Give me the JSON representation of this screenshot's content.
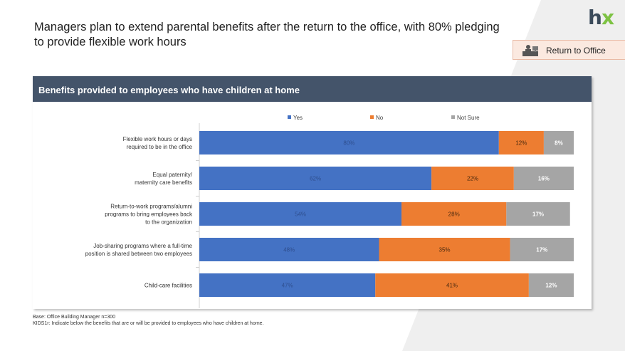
{
  "header": {
    "title": "Managers plan to extend parental benefits after the return to the office, with 80% pledging to provide flexible work hours",
    "logo": {
      "h": "h",
      "x": "x"
    },
    "tag_label": "Return to Office",
    "tag_icon": "office-worker-icon"
  },
  "panel": {
    "title": "Benefits provided to employees who have children at home"
  },
  "footnotes": {
    "base": "Base: Office Building Manager n=300",
    "question": "KIDS1r: Indicate below the benefits that are or will be provided to employees who have children at home."
  },
  "colors": {
    "yes": "#4472c4",
    "no": "#ed7d31",
    "not_sure": "#a5a5a5",
    "header": "#44546a"
  },
  "chart_data": {
    "type": "bar",
    "orientation": "horizontal",
    "stacked": true,
    "percent": true,
    "legend_position": "top",
    "categories": [
      [
        "Flexible work hours or days",
        "required to be in the office"
      ],
      [
        "Equal paternity/",
        "maternity care benefits"
      ],
      [
        "Return-to-work programs/alumni",
        "programs to bring employees back",
        "to the organization"
      ],
      [
        "Job-sharing programs where a full-time",
        "position is shared between two employees"
      ],
      [
        "Child-care facilities"
      ]
    ],
    "series": [
      {
        "name": "Yes",
        "values": [
          80,
          62,
          54,
          48,
          47
        ]
      },
      {
        "name": "No",
        "values": [
          12,
          22,
          28,
          35,
          41
        ]
      },
      {
        "name": "Not Sure",
        "values": [
          8,
          16,
          17,
          17,
          12
        ]
      }
    ],
    "xlim": [
      0,
      100
    ]
  }
}
